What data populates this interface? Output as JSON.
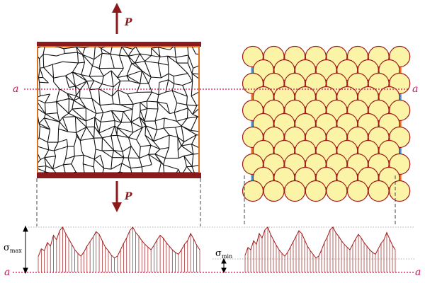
{
  "labels": {
    "force_top": "P",
    "force_bottom": "P",
    "section_left": "a",
    "section_right": "a",
    "baseline_left": "a",
    "baseline_right": "a",
    "sigma_max_symbol": "σ",
    "sigma_max_sub": "max",
    "sigma_min_symbol": "σ",
    "sigma_min_sub": "min"
  },
  "colors": {
    "clamp": "#8b1a1a",
    "arrow": "#8b1a1a",
    "specimen_border": "#e0701a",
    "section_line": "#d0105a",
    "atom_fill": "#fbf3a6",
    "atom_stroke": "#a01a1a",
    "bond_orange": "#f07020",
    "bond_blue": "#3a9ad8",
    "stress_curve": "#a01a1a",
    "guide": "#555555"
  },
  "lattice": {
    "columns": 8,
    "rows": 6
  },
  "stress_profile": {
    "sigma_max_fraction": 1.0,
    "sigma_min_fraction": 0.3,
    "left": [
      0.35,
      0.52,
      0.48,
      0.66,
      0.58,
      0.82,
      0.72,
      0.92,
      1.0,
      0.86,
      0.74,
      0.62,
      0.5,
      0.42,
      0.36,
      0.45,
      0.58,
      0.68,
      0.78,
      0.9,
      0.84,
      0.7,
      0.56,
      0.48,
      0.38,
      0.32,
      0.36,
      0.5,
      0.64,
      0.76,
      0.92,
      1.0,
      0.88,
      0.8,
      0.7,
      0.62,
      0.56,
      0.5,
      0.6,
      0.72,
      0.82,
      0.76,
      0.66,
      0.58,
      0.5,
      0.44,
      0.4,
      0.5,
      0.62,
      0.7,
      0.86,
      0.74,
      0.6,
      0.5
    ],
    "right": [
      0.38,
      0.55,
      0.5,
      0.7,
      0.62,
      0.86,
      0.76,
      0.94,
      1.0,
      0.84,
      0.72,
      0.6,
      0.5,
      0.42,
      0.36,
      0.44,
      0.56,
      0.68,
      0.8,
      0.92,
      0.86,
      0.72,
      0.58,
      0.48,
      0.4,
      0.32,
      0.36,
      0.5,
      0.66,
      0.78,
      0.94,
      1.0,
      0.88,
      0.8,
      0.7,
      0.62,
      0.56,
      0.5,
      0.62,
      0.74,
      0.84,
      0.76,
      0.66,
      0.58,
      0.5,
      0.44,
      0.4,
      0.52,
      0.64,
      0.72,
      0.88,
      0.74,
      0.6,
      0.5
    ]
  }
}
